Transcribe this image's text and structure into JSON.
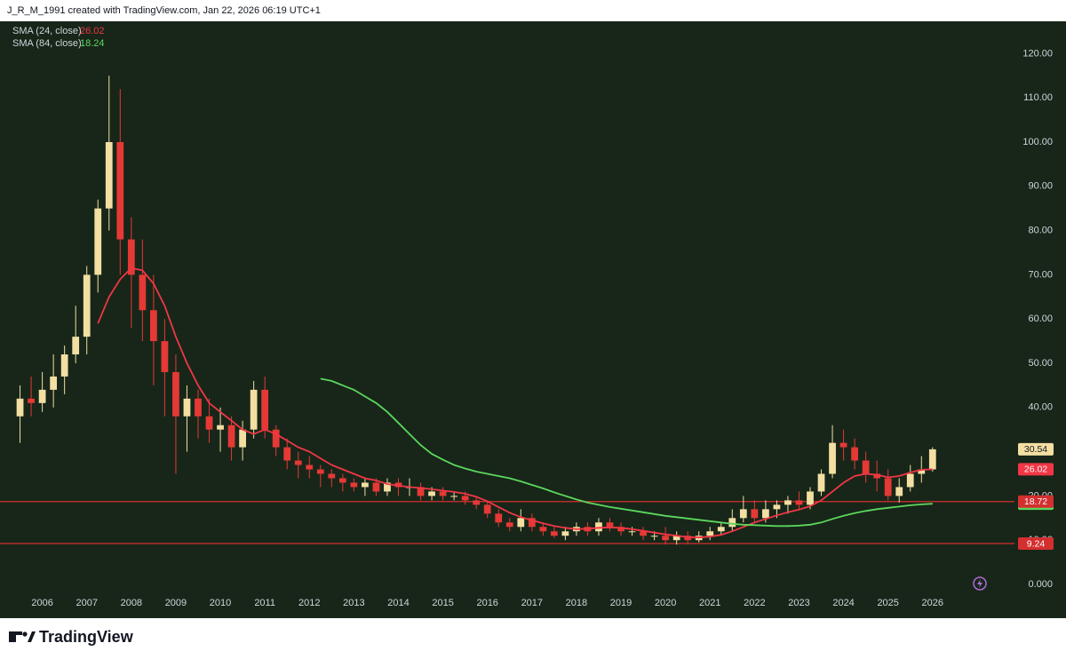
{
  "header": {
    "attribution": "J_R_M_1991 created with TradingView.com, Jan 22, 2026 06:19 UTC+1"
  },
  "footer": {
    "brand": "TradingView"
  },
  "chart_data": {
    "type": "candlestick",
    "x": [
      2005.5,
      2005.75,
      2006,
      2006.25,
      2006.5,
      2006.75,
      2007,
      2007.25,
      2007.5,
      2007.75,
      2008,
      2008.25,
      2008.5,
      2008.75,
      2009,
      2009.25,
      2009.5,
      2009.75,
      2010,
      2010.25,
      2010.5,
      2010.75,
      2011,
      2011.25,
      2011.5,
      2011.75,
      2012,
      2012.25,
      2012.5,
      2012.75,
      2013,
      2013.25,
      2013.5,
      2013.75,
      2014,
      2014.25,
      2014.5,
      2014.75,
      2015,
      2015.25,
      2015.5,
      2015.75,
      2016,
      2016.25,
      2016.5,
      2016.75,
      2017,
      2017.25,
      2017.5,
      2017.75,
      2018,
      2018.25,
      2018.5,
      2018.75,
      2019,
      2019.25,
      2019.5,
      2019.75,
      2020,
      2020.25,
      2020.5,
      2020.75,
      2021,
      2021.25,
      2021.5,
      2021.75,
      2022,
      2022.25,
      2022.5,
      2022.75,
      2023,
      2023.25,
      2023.5,
      2023.75,
      2024,
      2024.25,
      2024.5,
      2024.75,
      2025,
      2025.25,
      2025.5,
      2025.75,
      2026
    ],
    "open": [
      38,
      42,
      41,
      44,
      47,
      52,
      56,
      70,
      85,
      100,
      78,
      70,
      62,
      55,
      48,
      38,
      42,
      38,
      35,
      36,
      31,
      35,
      44,
      35,
      31,
      28,
      27,
      26,
      25,
      24,
      23,
      22,
      23,
      21,
      23,
      22,
      22,
      20,
      21,
      20,
      20,
      19,
      18,
      16,
      14,
      13,
      15,
      13,
      12,
      11,
      12,
      13,
      12,
      14,
      13,
      12,
      12,
      11,
      11,
      10,
      11,
      10,
      11,
      12,
      13,
      15,
      17,
      15,
      17,
      18,
      19,
      18,
      21,
      25,
      32,
      31,
      28,
      25,
      24,
      20,
      22,
      25,
      26
    ],
    "high": [
      45,
      47,
      48,
      52,
      54,
      63,
      72,
      87,
      115,
      112,
      83,
      78,
      70,
      60,
      52,
      45,
      44,
      42,
      40,
      38,
      37,
      46,
      47,
      36,
      33,
      30,
      29,
      27,
      26,
      25,
      24,
      24,
      24,
      24,
      24,
      24,
      23,
      22,
      22,
      21,
      21,
      20,
      19,
      17,
      15,
      17,
      16,
      14,
      13,
      13,
      14,
      14,
      15,
      15,
      14,
      13,
      13,
      12,
      13,
      12,
      12,
      12,
      13,
      14,
      17,
      20,
      19,
      19,
      19,
      20,
      21,
      22,
      26,
      36,
      35,
      33,
      30,
      28,
      26,
      24,
      27,
      29,
      31
    ],
    "low": [
      32,
      38,
      39,
      40,
      43,
      50,
      52,
      66,
      80,
      70,
      58,
      55,
      45,
      38,
      25,
      30,
      33,
      32,
      30,
      28,
      28,
      33,
      33,
      29,
      26,
      24,
      24,
      22,
      22,
      21,
      21,
      20,
      20,
      20,
      20,
      20,
      19,
      19,
      19,
      19,
      18,
      17,
      15,
      13,
      12,
      12,
      12,
      11,
      10.5,
      10,
      11,
      11,
      11,
      12,
      11,
      11,
      10,
      10,
      9,
      9,
      9,
      9.5,
      10,
      11,
      12,
      14,
      14,
      14,
      15,
      16,
      17,
      17,
      20,
      24,
      28,
      26,
      23,
      21,
      19,
      18.5,
      21,
      23,
      25.5
    ],
    "close": [
      42,
      41,
      44,
      47,
      52,
      56,
      70,
      85,
      100,
      78,
      70,
      62,
      55,
      48,
      38,
      42,
      38,
      35,
      36,
      31,
      35,
      44,
      35,
      31,
      28,
      27,
      26,
      25,
      24,
      23,
      22,
      23,
      21,
      23,
      22,
      22,
      20,
      21,
      20,
      20,
      19,
      18,
      16,
      14,
      13,
      15,
      13,
      12,
      11,
      12,
      13,
      12,
      14,
      13,
      12,
      12,
      11,
      11,
      10,
      11,
      10,
      11,
      12,
      13,
      15,
      17,
      15,
      17,
      18,
      19,
      18,
      21,
      25,
      32,
      31,
      28,
      25,
      24,
      20,
      22,
      25,
      26,
      30.54
    ],
    "up_color": "#f3dfa2",
    "down_color": "#e53935",
    "series": [
      {
        "name": "SMA (24, close)",
        "color": "#f23645",
        "values": [
          null,
          null,
          null,
          null,
          null,
          null,
          null,
          59,
          65,
          69,
          71.5,
          71,
          68,
          63,
          56,
          50,
          45,
          41,
          39,
          37,
          35,
          34,
          35,
          34,
          32.5,
          31,
          30,
          28.5,
          27,
          26,
          25,
          24,
          23.5,
          22.7,
          22.3,
          22,
          21.8,
          21.5,
          21.2,
          20.9,
          20.5,
          19.8,
          18.8,
          17.5,
          16.2,
          15.2,
          14.5,
          13.8,
          13.2,
          12.8,
          12.5,
          12.6,
          12.8,
          12.9,
          12.8,
          12.5,
          12.1,
          11.7,
          11.3,
          11,
          10.7,
          10.6,
          10.8,
          11.2,
          12,
          13,
          14,
          14.8,
          15.6,
          16.3,
          16.9,
          17.7,
          19,
          21,
          23,
          24.5,
          25,
          24.8,
          24.2,
          24.5,
          25.3,
          25.9,
          26.02
        ]
      },
      {
        "name": "SMA (84, close)",
        "color": "#5cd65c",
        "values": [
          null,
          null,
          null,
          null,
          null,
          null,
          null,
          null,
          null,
          null,
          null,
          null,
          null,
          null,
          null,
          null,
          null,
          null,
          null,
          null,
          null,
          null,
          null,
          null,
          null,
          null,
          null,
          46.5,
          46,
          45,
          44,
          42.5,
          41,
          39,
          36.5,
          34,
          31.5,
          29.5,
          28.2,
          27,
          26.2,
          25.5,
          25,
          24.5,
          24,
          23.3,
          22.5,
          21.7,
          20.8,
          20,
          19.2,
          18.5,
          18,
          17.5,
          17.1,
          16.7,
          16.3,
          15.9,
          15.5,
          15.2,
          14.9,
          14.6,
          14.3,
          14,
          13.7,
          13.5,
          13.4,
          13.3,
          13.2,
          13.2,
          13.3,
          13.5,
          14,
          14.8,
          15.5,
          16.1,
          16.6,
          17,
          17.3,
          17.6,
          17.9,
          18.1,
          18.24
        ]
      }
    ],
    "hlines": [
      18.72,
      9.24
    ],
    "hline_color": "#d32f2f",
    "xlim": [
      2005.05,
      2027.8
    ],
    "xticks": [
      2006,
      2007,
      2008,
      2009,
      2010,
      2011,
      2012,
      2013,
      2014,
      2015,
      2016,
      2017,
      2018,
      2019,
      2020,
      2021,
      2022,
      2023,
      2024,
      2025,
      2026
    ],
    "ylim": [
      0,
      127
    ],
    "yticks": [
      {
        "value": 0,
        "label": "0.000"
      },
      {
        "value": 10,
        "label": "10.00"
      },
      {
        "value": 20,
        "label": "20.00"
      },
      {
        "value": 30,
        "label": "30.00"
      },
      {
        "value": 40,
        "label": "40.00"
      },
      {
        "value": 50,
        "label": "50.00"
      },
      {
        "value": 60,
        "label": "60.00"
      },
      {
        "value": 70,
        "label": "70.00"
      },
      {
        "value": 80,
        "label": "80.00"
      },
      {
        "value": 90,
        "label": "90.00"
      },
      {
        "value": 100,
        "label": "100.00"
      },
      {
        "value": 110,
        "label": "110.00"
      },
      {
        "value": 120,
        "label": "120.00"
      }
    ],
    "grid": false,
    "background": "#172619"
  }
}
